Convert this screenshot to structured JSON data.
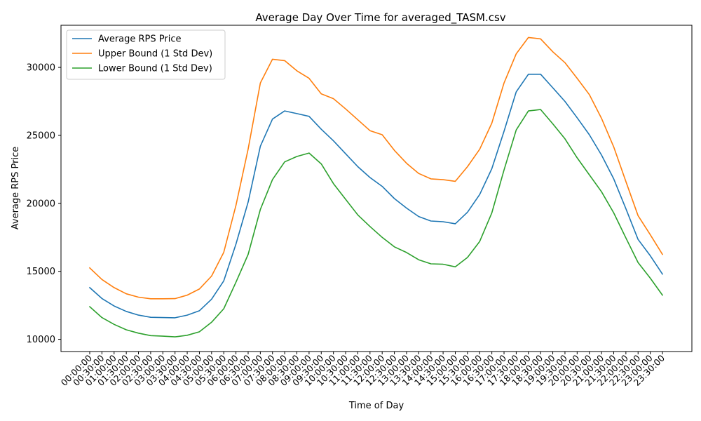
{
  "chart_data": {
    "type": "line",
    "title": "Average Day Over Time for averaged_TASM.csv",
    "xlabel": "Time of Day",
    "ylabel": "Average RPS Price",
    "ylim": [
      9100,
      33100
    ],
    "yticks": [
      10000,
      15000,
      20000,
      25000,
      30000
    ],
    "grid": false,
    "legend_position": "top-left",
    "categories": [
      "00:00:00",
      "00:30:00",
      "01:00:00",
      "01:30:00",
      "02:00:00",
      "02:30:00",
      "03:00:00",
      "03:30:00",
      "04:00:00",
      "04:30:00",
      "05:00:00",
      "05:30:00",
      "06:00:00",
      "06:30:00",
      "07:00:00",
      "07:30:00",
      "08:00:00",
      "08:30:00",
      "09:00:00",
      "09:30:00",
      "10:00:00",
      "10:30:00",
      "11:00:00",
      "11:30:00",
      "12:00:00",
      "12:30:00",
      "13:00:00",
      "13:30:00",
      "14:00:00",
      "14:30:00",
      "15:00:00",
      "15:30:00",
      "16:00:00",
      "16:30:00",
      "17:00:00",
      "17:30:00",
      "18:00:00",
      "18:30:00",
      "19:00:00",
      "19:30:00",
      "20:00:00",
      "20:30:00",
      "21:00:00",
      "21:30:00",
      "22:00:00",
      "22:30:00",
      "23:00:00",
      "23:30:00"
    ],
    "series": [
      {
        "name": "Average RPS Price",
        "color": "#1f77b4",
        "values": [
          13800,
          13000,
          12450,
          12050,
          11780,
          11620,
          11600,
          11580,
          11780,
          12100,
          12950,
          14300,
          17000,
          20100,
          24200,
          26200,
          26800,
          26600,
          26400,
          25450,
          24600,
          23650,
          22700,
          21900,
          21250,
          20350,
          19650,
          19030,
          18700,
          18650,
          18500,
          19350,
          20650,
          22550,
          25300,
          28200,
          29500,
          29500,
          28500,
          27500,
          26300,
          25050,
          23550,
          21800,
          19600,
          17350,
          16150,
          14800
        ]
      },
      {
        "name": "Upper Bound (1 Std Dev)",
        "color": "#ff7f0e",
        "values": [
          15250,
          14400,
          13800,
          13350,
          13100,
          12980,
          12980,
          12990,
          13250,
          13700,
          14650,
          16400,
          19850,
          24000,
          28850,
          30600,
          30500,
          29750,
          29200,
          28050,
          27700,
          26950,
          26150,
          25350,
          25050,
          23900,
          22950,
          22200,
          21800,
          21740,
          21620,
          22700,
          23980,
          25900,
          28850,
          31000,
          32200,
          32100,
          31150,
          30350,
          29200,
          28000,
          26250,
          24150,
          21600,
          19100,
          17700,
          16250
        ]
      },
      {
        "name": "Lower Bound (1 Std Dev)",
        "color": "#2ca02c",
        "values": [
          12400,
          11600,
          11100,
          10700,
          10450,
          10270,
          10230,
          10180,
          10300,
          10550,
          11250,
          12250,
          14200,
          16250,
          19550,
          21750,
          23050,
          23450,
          23700,
          22900,
          21450,
          20300,
          19150,
          18300,
          17500,
          16800,
          16380,
          15850,
          15550,
          15520,
          15330,
          16020,
          17200,
          19300,
          22450,
          25400,
          26800,
          26900,
          25850,
          24750,
          23350,
          22100,
          20850,
          19300,
          17450,
          15650,
          14500,
          13250
        ]
      }
    ]
  }
}
